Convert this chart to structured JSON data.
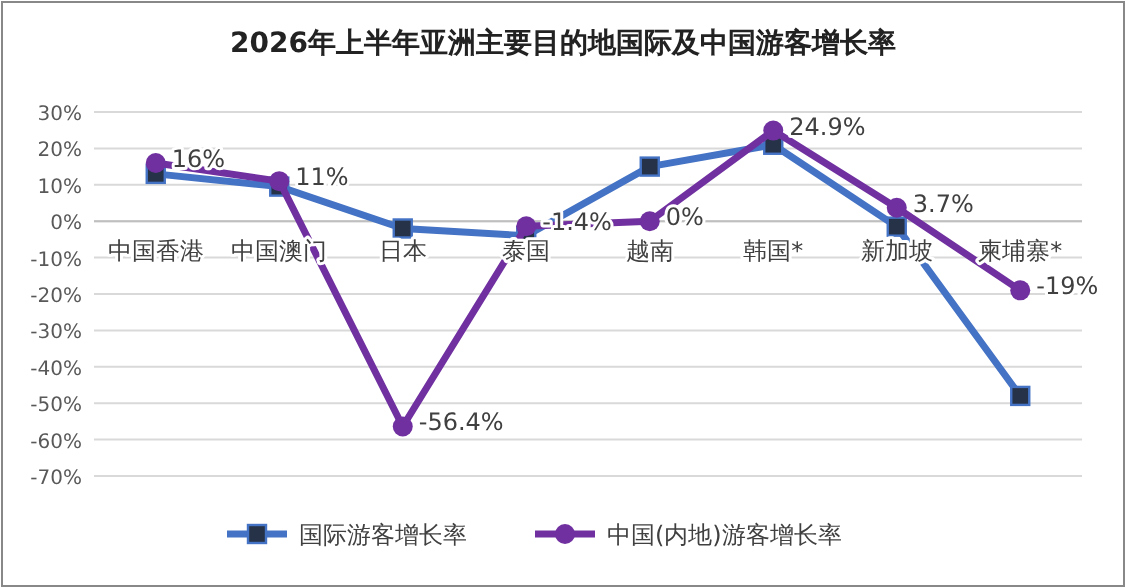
{
  "chart_data": {
    "type": "line",
    "title": "2026年上半年亚洲主要目的地国际及中国游客增长率",
    "categories": [
      "中国香港",
      "中国澳门",
      "日本",
      "泰国",
      "越南",
      "韩国*",
      "新加坡",
      "柬埔寨*"
    ],
    "series": [
      {
        "name": "国际游客增长率",
        "color": "#4472c4",
        "marker": "square",
        "values": [
          13,
          9.5,
          -2,
          -4,
          15,
          21,
          -1.5,
          -48
        ]
      },
      {
        "name": "中国(内地)游客增长率",
        "color": "#7030a0",
        "marker": "circle",
        "values": [
          16,
          11,
          -56.4,
          -1.4,
          0,
          24.9,
          3.7,
          -19
        ],
        "value_labels": [
          "16%",
          "11%",
          "-56.4%",
          "-1.4%",
          "0%",
          "24.9%",
          "3.7%",
          "-19%"
        ]
      }
    ],
    "ylim": [
      -70,
      30
    ],
    "yticks": [
      {
        "value": 30,
        "label": "30%"
      },
      {
        "value": 20,
        "label": "20%"
      },
      {
        "value": 10,
        "label": "10%"
      },
      {
        "value": 0,
        "label": "0%"
      },
      {
        "value": -10,
        "label": "-10%"
      },
      {
        "value": -20,
        "label": "-20%"
      },
      {
        "value": -30,
        "label": "-30%"
      },
      {
        "value": -40,
        "label": "-40%"
      },
      {
        "value": -50,
        "label": "-50%"
      },
      {
        "value": -60,
        "label": "-60%"
      },
      {
        "value": -70,
        "label": "-70%"
      }
    ],
    "grid": "y",
    "legend": "bottom",
    "line_style": "solid"
  }
}
